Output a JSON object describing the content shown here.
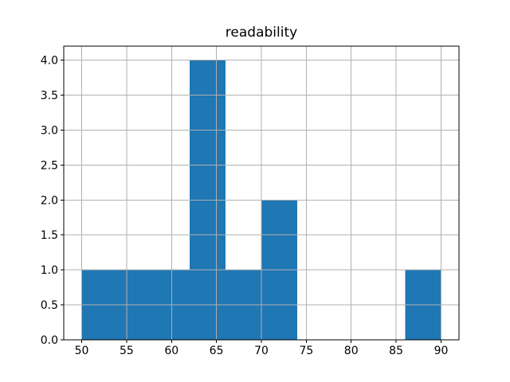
{
  "figure": {
    "background": "#ffffff",
    "colors": {
      "bar": "#1f77b4",
      "grid": "#b0b0b0",
      "spine": "#000000",
      "tick": "#000000",
      "text": "#000000"
    }
  },
  "chart_data": {
    "type": "bar",
    "subtype": "histogram",
    "title": "readability",
    "xlabel": "",
    "ylabel": "",
    "bin_edges": [
      50,
      54,
      58,
      62,
      66,
      70,
      74,
      78,
      82,
      86,
      90
    ],
    "counts": [
      1,
      1,
      1,
      4,
      1,
      2,
      0,
      0,
      0,
      1
    ],
    "xlim": [
      48,
      92
    ],
    "ylim": [
      0,
      4.2
    ],
    "xticks": [
      50,
      55,
      60,
      65,
      70,
      75,
      80,
      85,
      90
    ],
    "xtick_labels": [
      "50",
      "55",
      "60",
      "65",
      "70",
      "75",
      "80",
      "85",
      "90"
    ],
    "yticks": [
      0.0,
      0.5,
      1.0,
      1.5,
      2.0,
      2.5,
      3.0,
      3.5,
      4.0
    ],
    "ytick_labels": [
      "0.0",
      "0.5",
      "1.0",
      "1.5",
      "2.0",
      "2.5",
      "3.0",
      "3.5",
      "4.0"
    ],
    "grid": true,
    "grid_above_bars": true,
    "legend": null
  }
}
